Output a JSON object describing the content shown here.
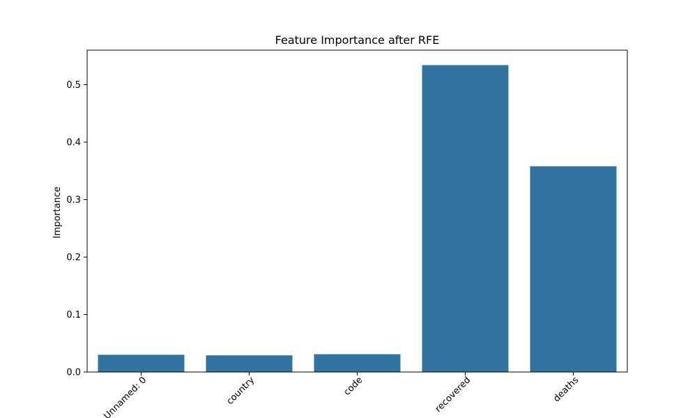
{
  "chart_data": {
    "type": "bar",
    "title": "Feature Importance after RFE",
    "xlabel": "",
    "ylabel": "Importance",
    "categories": [
      "Unnamed: 0",
      "country",
      "code",
      "recovered",
      "deaths"
    ],
    "values": [
      0.03,
      0.029,
      0.031,
      0.534,
      0.358
    ],
    "ylim": [
      0,
      0.56
    ],
    "yticks": [
      "0.0",
      "0.1",
      "0.2",
      "0.3",
      "0.4",
      "0.5"
    ],
    "bar_color": "#3274a1",
    "grid": false,
    "x_tick_rotation": "45deg"
  }
}
